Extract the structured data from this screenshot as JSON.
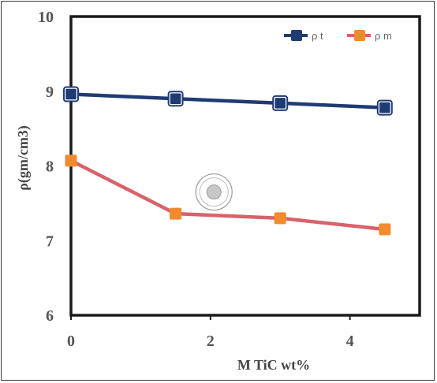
{
  "chart_data": {
    "type": "line",
    "title": "",
    "xlabel": "M TiC wt%",
    "ylabel": "ρ(gm/cm3)",
    "xlim": [
      0,
      5
    ],
    "ylim": [
      6,
      10
    ],
    "x_ticks": [
      0,
      2,
      4
    ],
    "y_ticks": [
      6,
      7,
      8,
      9,
      10
    ],
    "grid": false,
    "legend_position": "top-right",
    "x": [
      0,
      1.5,
      3,
      4.5
    ],
    "series": [
      {
        "name": "ρ t",
        "values": [
          8.96,
          8.9,
          8.84,
          8.78
        ],
        "color": "#1f3b73",
        "marker_color": "#1f3b73",
        "marker": "square"
      },
      {
        "name": "ρ m",
        "values": [
          8.07,
          7.36,
          7.3,
          7.15
        ],
        "color": "#d9626a",
        "marker_color": "#f28a2e",
        "marker": "square"
      }
    ]
  },
  "overlay": {
    "icon": "target-circle-icon",
    "at": {
      "x": 2.05,
      "y": 7.65
    }
  }
}
